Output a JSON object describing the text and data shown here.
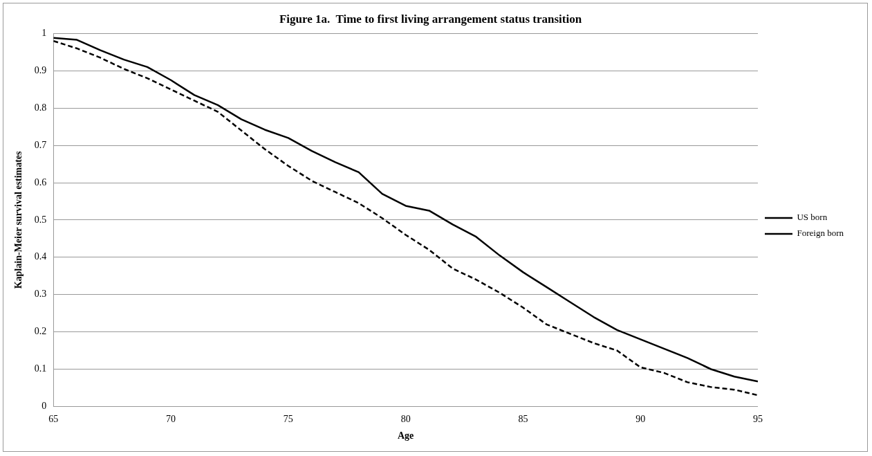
{
  "chart_data": {
    "type": "line",
    "title": "Figure 1a.  Time to first living arrangement status transition",
    "xlabel": "Age",
    "ylabel": "Kaplain-Meier survival estimates",
    "x": [
      65,
      66,
      67,
      68,
      69,
      70,
      71,
      72,
      73,
      74,
      75,
      76,
      77,
      78,
      79,
      80,
      81,
      82,
      83,
      84,
      85,
      86,
      87,
      88,
      89,
      90,
      91,
      92,
      93,
      94,
      95
    ],
    "series": [
      {
        "name": "US born",
        "color": "#000000",
        "line_style": "dashed",
        "values": [
          0.98,
          0.96,
          0.935,
          0.905,
          0.88,
          0.85,
          0.82,
          0.79,
          0.74,
          0.69,
          0.645,
          0.605,
          0.575,
          0.545,
          0.505,
          0.46,
          0.42,
          0.37,
          0.34,
          0.305,
          0.265,
          0.22,
          0.195,
          0.17,
          0.15,
          0.105,
          0.09,
          0.065,
          0.052,
          0.045,
          0.03
        ]
      },
      {
        "name": "Foreign born",
        "color": "#000000",
        "line_style": "solid",
        "values": [
          0.988,
          0.983,
          0.955,
          0.93,
          0.91,
          0.875,
          0.835,
          0.808,
          0.77,
          0.742,
          0.72,
          0.685,
          0.655,
          0.628,
          0.57,
          0.538,
          0.525,
          0.488,
          0.455,
          0.405,
          0.36,
          0.32,
          0.28,
          0.24,
          0.205,
          0.18,
          0.155,
          0.13,
          0.1,
          0.08,
          0.067
        ]
      }
    ],
    "xlim": [
      65,
      95
    ],
    "xticks": [
      65,
      70,
      75,
      80,
      85,
      90,
      95
    ],
    "ylim": [
      0,
      1
    ],
    "yticks": [
      0,
      0.1,
      0.2,
      0.3,
      0.4,
      0.5,
      0.6,
      0.7,
      0.8,
      0.9,
      1
    ],
    "grid": "y",
    "legend": "right",
    "marker": "none"
  }
}
